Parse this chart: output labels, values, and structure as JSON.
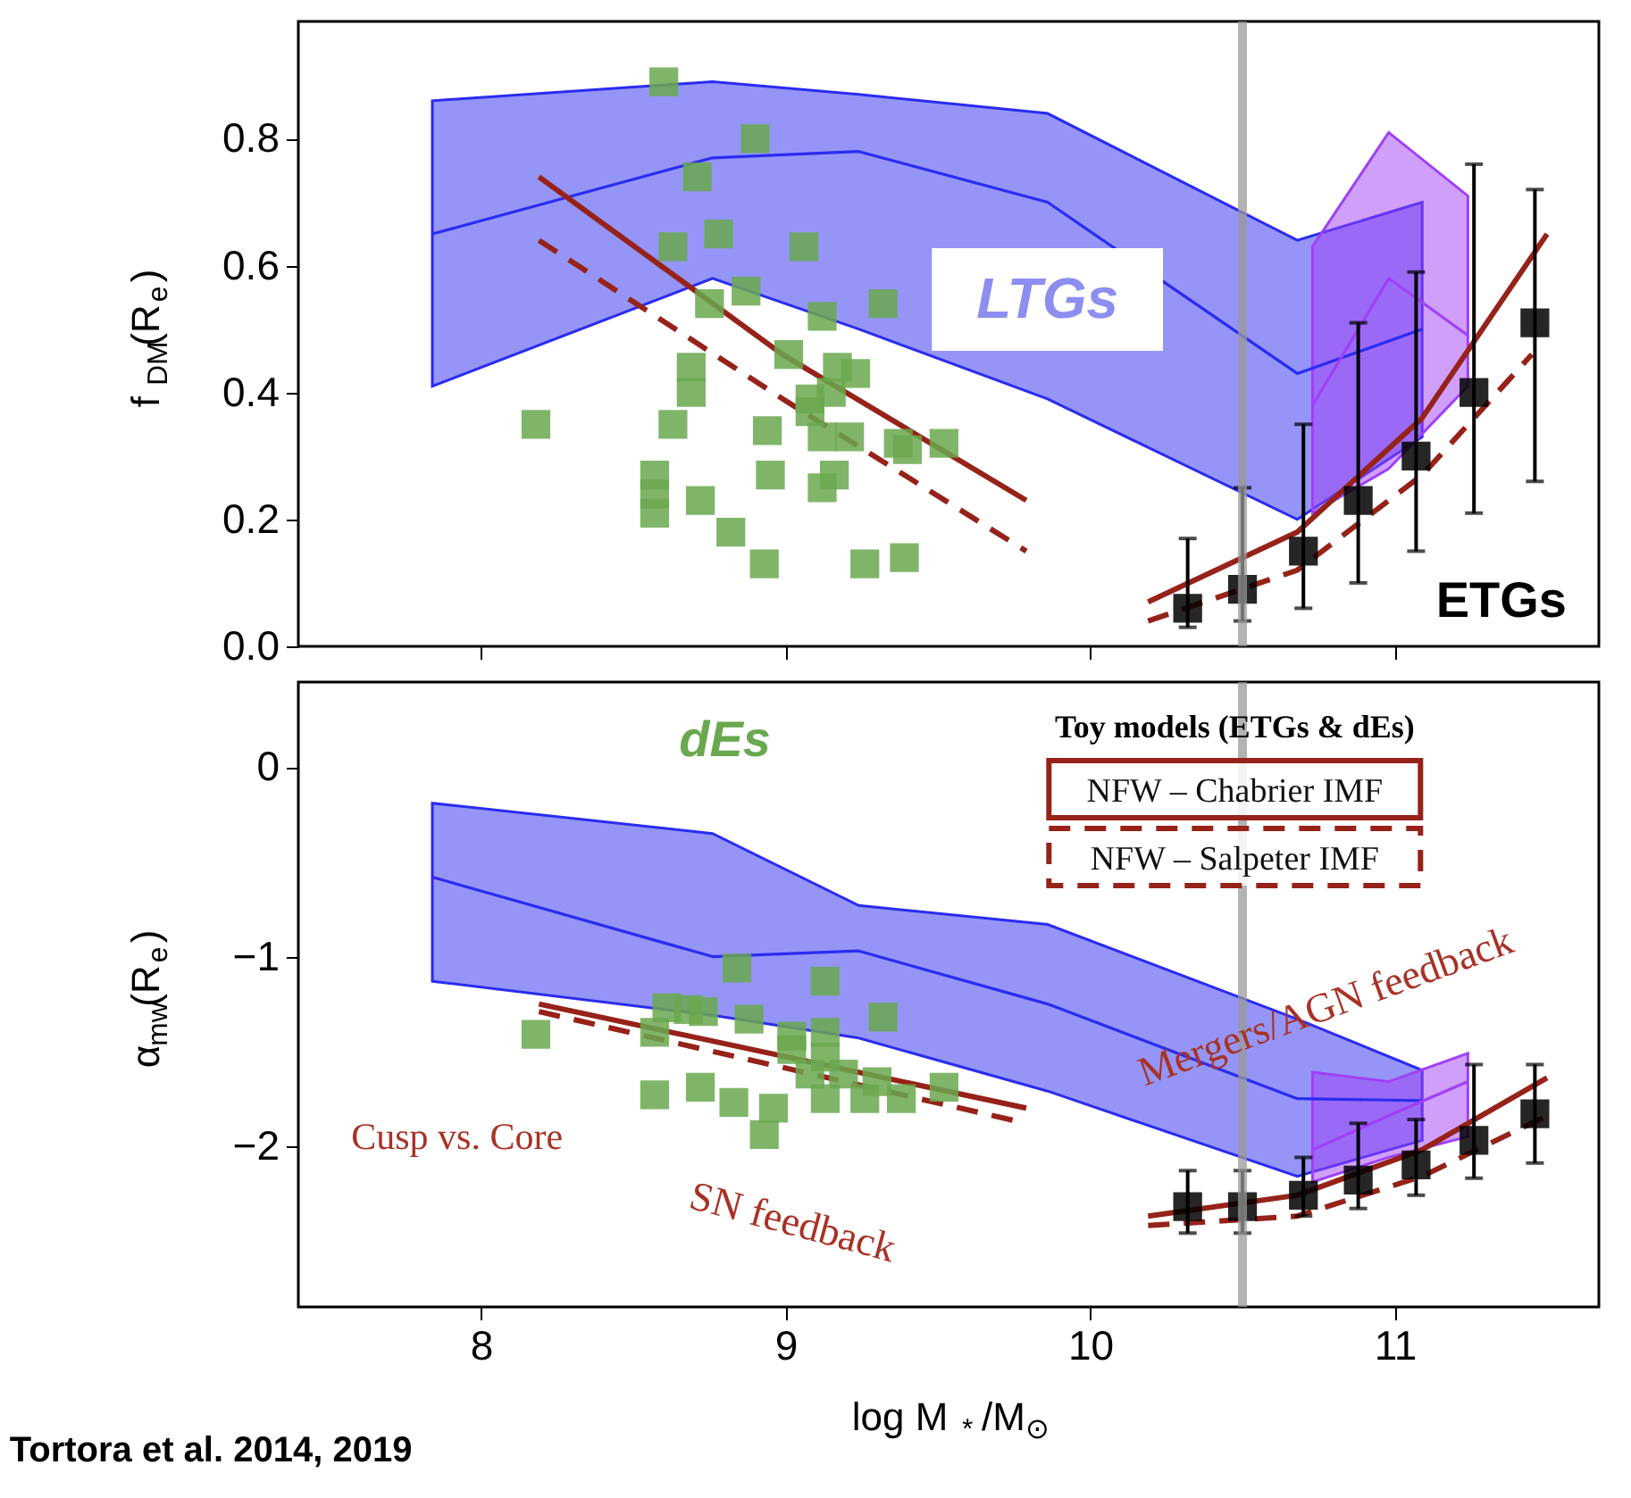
{
  "chart_data": [
    {
      "type": "line",
      "ylabel": "f$_{DM}$(R$_{e}$)",
      "xlim": [
        7.4,
        11.67
      ],
      "xticks": [
        8,
        9,
        10,
        11
      ],
      "ylim": [
        0,
        0.985
      ],
      "yticks": [
        {
          "value": 0,
          "label": "0.0"
        },
        0.2,
        0.4,
        0.6,
        0.8
      ],
      "tick_labels": "y",
      "series": [
        {
          "color": "#2b2bf0",
          "x": [
            7.84,
            8.76,
            9.24,
            9.86,
            10.68,
            11.09
          ],
          "values": [
            0.65,
            0.77,
            0.78,
            0.7,
            0.43,
            0.5
          ],
          "lower": [
            0.41,
            0.58,
            0.5,
            0.39,
            0.2,
            0.33
          ],
          "upper": [
            0.86,
            0.89,
            0.87,
            0.84,
            0.64,
            0.7
          ]
        },
        {
          "color": "#a040f5",
          "x": [
            10.73,
            10.98,
            11.24
          ],
          "values": [
            0.38,
            0.58,
            0.49
          ],
          "lower": [
            0.21,
            0.28,
            0.41
          ],
          "upper": [
            0.63,
            0.81,
            0.71
          ]
        },
        {
          "color": "#962219",
          "line_style": "solid",
          "x": [
            8.19,
            8.99,
            9.79,
            10.0,
            10.19,
            10.68,
            11.09,
            11.5
          ],
          "values": [
            0.74,
            0.46,
            0.23,
            null,
            0.07,
            0.18,
            0.36,
            0.65
          ]
        },
        {
          "color": "#962219",
          "line_style": "dashed",
          "x": [
            8.19,
            8.99,
            9.79,
            10.0,
            10.19,
            10.68,
            11.09,
            11.45
          ],
          "values": [
            0.64,
            0.39,
            0.15,
            null,
            0.04,
            0.12,
            0.27,
            0.46
          ]
        },
        {
          "type": "scatter",
          "marker": "square",
          "color": "#6aa84f",
          "x": [
            8.6,
            8.9,
            8.71,
            8.63,
            8.78,
            9.06,
            8.87,
            8.75,
            9.12,
            9.32,
            8.69,
            9.01,
            8.69,
            8.18,
            8.63,
            8.94,
            9.08,
            9.15,
            9.23,
            9.12,
            9.21,
            9.37,
            9.4,
            9.52,
            8.57,
            8.57,
            8.57,
            8.95,
            9.16,
            8.72,
            9.12,
            8.82,
            8.93,
            9.26,
            9.39,
            9.08,
            9.17
          ],
          "values": [
            0.89,
            0.8,
            0.74,
            0.63,
            0.65,
            0.63,
            0.56,
            0.54,
            0.52,
            0.54,
            0.44,
            0.46,
            0.4,
            0.35,
            0.35,
            0.34,
            0.39,
            0.4,
            0.43,
            0.33,
            0.33,
            0.32,
            0.31,
            0.32,
            0.27,
            0.24,
            0.21,
            0.27,
            0.27,
            0.23,
            0.25,
            0.18,
            0.13,
            0.13,
            0.14,
            0.37,
            0.44
          ]
        },
        {
          "type": "scatter",
          "marker": "square",
          "color": "#000000",
          "x": [
            10.32,
            10.5,
            10.7,
            10.88,
            11.07,
            11.26,
            11.46
          ],
          "values": [
            0.06,
            0.09,
            0.15,
            0.23,
            0.3,
            0.4,
            0.51
          ],
          "errors": [
            [
              0.03,
              0.17
            ],
            [
              0.04,
              0.25
            ],
            [
              0.06,
              0.35
            ],
            [
              0.1,
              0.51
            ],
            [
              0.15,
              0.59
            ],
            [
              0.21,
              0.76
            ],
            [
              0.26,
              0.72
            ]
          ]
        }
      ],
      "ref_lines": [
        {
          "axis": "x",
          "value": 10.5,
          "color": "#9a9a9a"
        }
      ],
      "annotations": [
        "LTGs",
        "ETGs"
      ]
    },
    {
      "type": "line",
      "xlabel": "log M$_{*}$/M$_{⊙}$",
      "ylabel": "α$_{mw}$(R$_{e}$)",
      "xlim": [
        7.4,
        11.67
      ],
      "xticks": [
        8,
        9,
        10,
        11
      ],
      "ylim": [
        -2.85,
        0.45
      ],
      "yticks": [
        -2,
        -1,
        0
      ],
      "legend": "top right",
      "legend_title": "Toy models (ETGs & dEs)",
      "series": [
        {
          "color": "#2b2bf0",
          "x": [
            7.84,
            8.76,
            9.24,
            9.86,
            10.68,
            11.09
          ],
          "values": [
            -0.58,
            -1.0,
            -0.97,
            -1.25,
            -1.75,
            -1.76
          ],
          "lower": [
            -1.13,
            -1.31,
            -1.43,
            -1.71,
            -2.16,
            -1.97
          ],
          "upper": [
            -0.19,
            -0.35,
            -0.73,
            -0.83,
            -1.33,
            -1.6
          ]
        },
        {
          "color": "#a040f5",
          "x": [
            10.73,
            10.98,
            11.24
          ],
          "values": [
            -2.02,
            -1.84,
            -1.66
          ],
          "lower": [
            -2.19,
            -2.06,
            -1.95
          ],
          "upper": [
            -1.61,
            -1.66,
            -1.51
          ]
        },
        {
          "name": "NFW – Chabrier IMF",
          "color": "#962219",
          "line_style": "solid",
          "x": [
            8.19,
            9.79,
            10.0,
            10.19,
            10.68,
            11.09,
            11.5
          ],
          "values": [
            -1.25,
            -1.8,
            null,
            -2.37,
            -2.26,
            -2.02,
            -1.64
          ]
        },
        {
          "name": "NFW – Salpeter IMF",
          "color": "#962219",
          "line_style": "dashed",
          "x": [
            8.19,
            9.79,
            10.0,
            10.19,
            10.68,
            11.09,
            11.5
          ],
          "values": [
            -1.29,
            -1.88,
            null,
            -2.42,
            -2.37,
            -2.16,
            -1.84
          ]
        },
        {
          "type": "scatter",
          "marker": "square",
          "color": "#6aa84f",
          "x": [
            8.18,
            8.61,
            8.68,
            8.73,
            8.84,
            9.13,
            9.32,
            8.88,
            9.02,
            9.13,
            8.57,
            8.57,
            8.72,
            8.83,
            8.93,
            8.96,
            9.08,
            9.13,
            9.19,
            9.26,
            9.38,
            9.52,
            9.13,
            9.3,
            9.02
          ],
          "values": [
            -1.41,
            -1.27,
            -1.28,
            -1.29,
            -1.06,
            -1.13,
            -1.32,
            -1.33,
            -1.42,
            -1.4,
            -1.4,
            -1.73,
            -1.69,
            -1.77,
            -1.94,
            -1.8,
            -1.62,
            -1.75,
            -1.62,
            -1.75,
            -1.75,
            -1.69,
            -1.53,
            -1.66,
            -1.49
          ]
        },
        {
          "type": "scatter",
          "marker": "square",
          "color": "#000000",
          "x": [
            10.32,
            10.5,
            10.7,
            10.88,
            11.07,
            11.26,
            11.46
          ],
          "values": [
            -2.32,
            -2.32,
            -2.26,
            -2.18,
            -2.1,
            -1.97,
            -1.83
          ],
          "errors": [
            [
              -2.46,
              -2.13
            ],
            [
              -2.46,
              -2.13
            ],
            [
              -2.37,
              -2.06
            ],
            [
              -2.33,
              -1.88
            ],
            [
              -2.26,
              -1.86
            ],
            [
              -2.17,
              -1.57
            ],
            [
              -2.09,
              -1.57
            ]
          ]
        }
      ],
      "ref_lines": [
        {
          "axis": "x",
          "value": 10.5,
          "color": "#9a9a9a"
        }
      ],
      "annotations": [
        "dEs",
        "Cusp vs. Core",
        "SN feedback",
        "Mergers/AGN feedback",
        "Tortora et al. 2014, 2019"
      ]
    }
  ]
}
